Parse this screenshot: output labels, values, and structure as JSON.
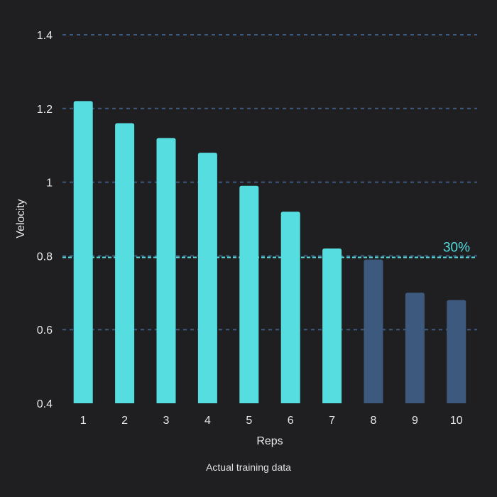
{
  "chart_data": {
    "type": "bar",
    "xlabel": "Reps",
    "ylabel": "Velocity",
    "categories": [
      "1",
      "2",
      "3",
      "4",
      "5",
      "6",
      "7",
      "8",
      "9",
      "10"
    ],
    "values": [
      1.22,
      1.16,
      1.12,
      1.08,
      0.99,
      0.92,
      0.82,
      0.79,
      0.7,
      0.68
    ],
    "ylim": [
      0.4,
      1.4
    ],
    "yticks": [
      "0.4",
      "0.6",
      "0.8",
      "1",
      "1.2",
      "1.4"
    ],
    "grid": true,
    "threshold": {
      "value": 0.796,
      "label": "30%"
    }
  },
  "colors": {
    "background": "#1f1f21",
    "above_threshold": "#55dde0",
    "below_threshold": "#3d5a7e",
    "gridline": "#3d5a7e",
    "threshold_line": "#55dde0"
  },
  "caption": "Actual training data"
}
